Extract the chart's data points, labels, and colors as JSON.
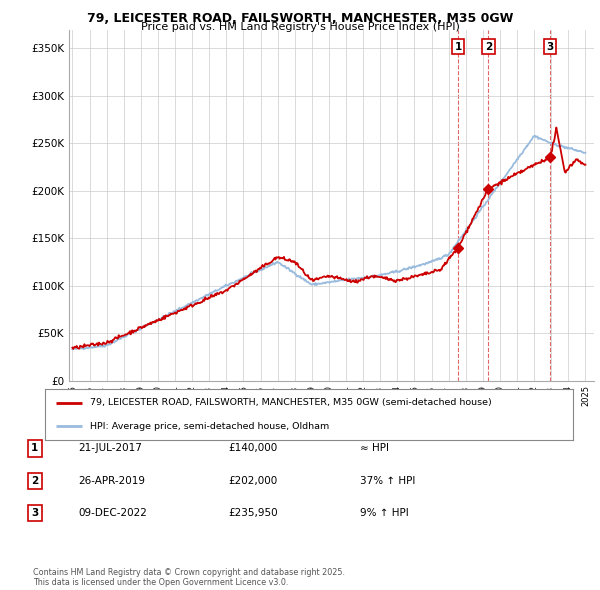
{
  "title_line1": "79, LEICESTER ROAD, FAILSWORTH, MANCHESTER, M35 0GW",
  "title_line2": "Price paid vs. HM Land Registry's House Price Index (HPI)",
  "ylabel_ticks": [
    "£0",
    "£50K",
    "£100K",
    "£150K",
    "£200K",
    "£250K",
    "£300K",
    "£350K"
  ],
  "ytick_values": [
    0,
    50000,
    100000,
    150000,
    200000,
    250000,
    300000,
    350000
  ],
  "ylim": [
    0,
    370000
  ],
  "xlim_start": 1994.8,
  "xlim_end": 2025.5,
  "house_color": "#cc0000",
  "hpi_color": "#99bbdd",
  "purchases": [
    {
      "date_num": 2017.55,
      "price": 140000,
      "label": "1"
    },
    {
      "date_num": 2019.32,
      "price": 202000,
      "label": "2"
    },
    {
      "date_num": 2022.94,
      "price": 235950,
      "label": "3"
    }
  ],
  "purchase_table": [
    {
      "num": "1",
      "date": "21-JUL-2017",
      "price": "£140,000",
      "change": "≈ HPI"
    },
    {
      "num": "2",
      "date": "26-APR-2019",
      "price": "£202,000",
      "change": "37% ↑ HPI"
    },
    {
      "num": "3",
      "date": "09-DEC-2022",
      "price": "£235,950",
      "change": "9% ↑ HPI"
    }
  ],
  "legend_house": "79, LEICESTER ROAD, FAILSWORTH, MANCHESTER, M35 0GW (semi-detached house)",
  "legend_hpi": "HPI: Average price, semi-detached house, Oldham",
  "footnote": "Contains HM Land Registry data © Crown copyright and database right 2025.\nThis data is licensed under the Open Government Licence v3.0.",
  "background_color": "#ffffff",
  "grid_color": "#cccccc"
}
